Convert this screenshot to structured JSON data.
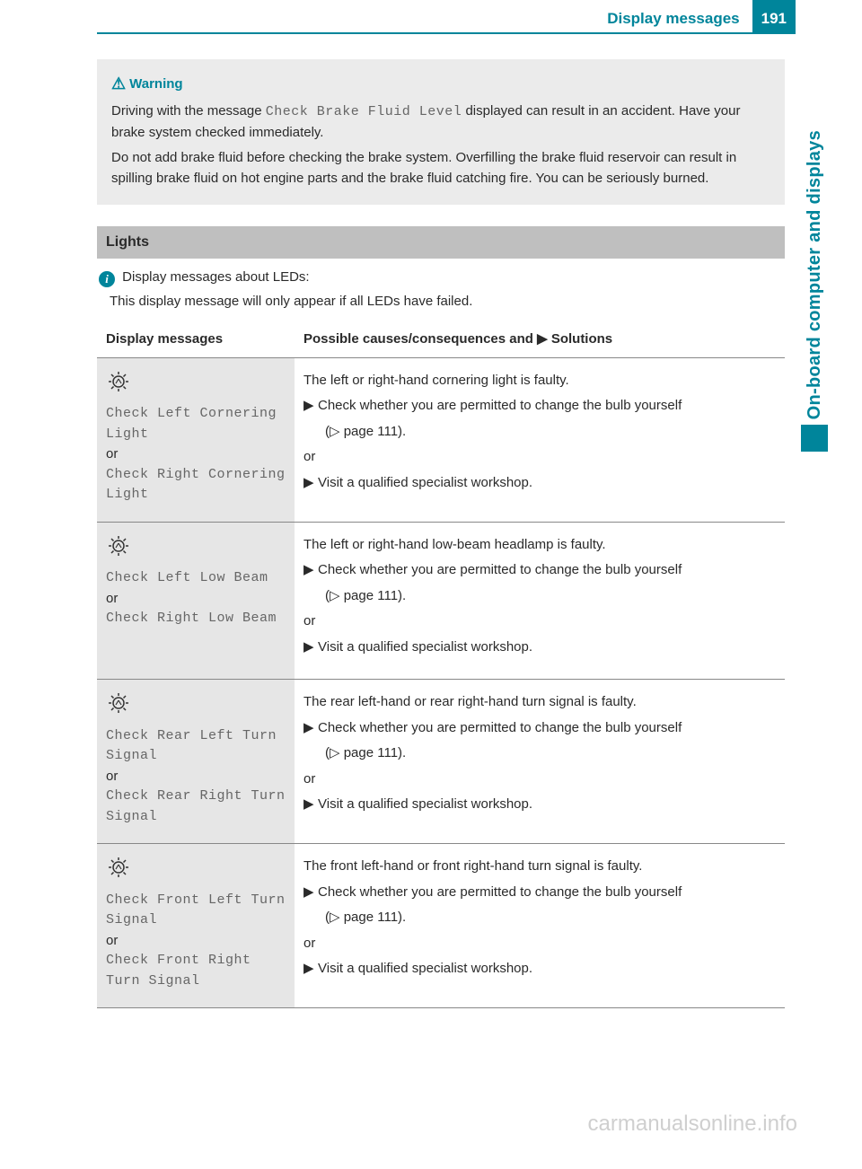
{
  "header": {
    "title": "Display messages",
    "page": "191"
  },
  "sideTab": "On-board computer and displays",
  "warning": {
    "label": "Warning",
    "symbol": "⚠",
    "para1a": "Driving with the message ",
    "para1mono": "Check Brake Fluid Level",
    "para1b": " displayed can result in an accident. Have your brake system checked immediately.",
    "para2": "Do not add brake fluid before checking the brake system. Overfilling the brake fluid reservoir can result in spilling brake fluid on hot engine parts and the brake fluid catching fire. You can be seriously burned."
  },
  "section": {
    "title": "Lights"
  },
  "info": {
    "line1": "Display messages about LEDs:",
    "line2": "This display message will only appear if all LEDs have failed."
  },
  "tableHead": {
    "col1": "Display messages",
    "col2": "Possible causes/consequences and ▶ Solutions"
  },
  "solutionCommon": {
    "checkBulb": "Check whether you are permitted to change the bulb yourself",
    "pageRef": "(▷ page 111).",
    "or": "or",
    "visit": "Visit a qualified specialist workshop.",
    "arrow": "▶"
  },
  "rows": [
    {
      "msg1": "Check Left Cornering Light",
      "or": "or",
      "msg2": "Check Right Cornering Light",
      "cause": "The left or right-hand cornering light is faulty."
    },
    {
      "msg1": "Check Left Low Beam",
      "or": "or",
      "msg2": "Check Right Low Beam",
      "cause": "The left or right-hand low-beam headlamp is faulty."
    },
    {
      "msg1": "Check Rear Left Turn Signal",
      "or": "or",
      "msg2": "Check Rear Right Turn Signal",
      "cause": "The rear left-hand or rear right-hand turn signal is faulty."
    },
    {
      "msg1": "Check Front Left Turn Signal",
      "or": "or",
      "msg2": "Check Front Right Turn Signal",
      "cause": "The front left-hand or front right-hand turn signal is faulty."
    }
  ],
  "watermark": "carmanualsonline.info"
}
